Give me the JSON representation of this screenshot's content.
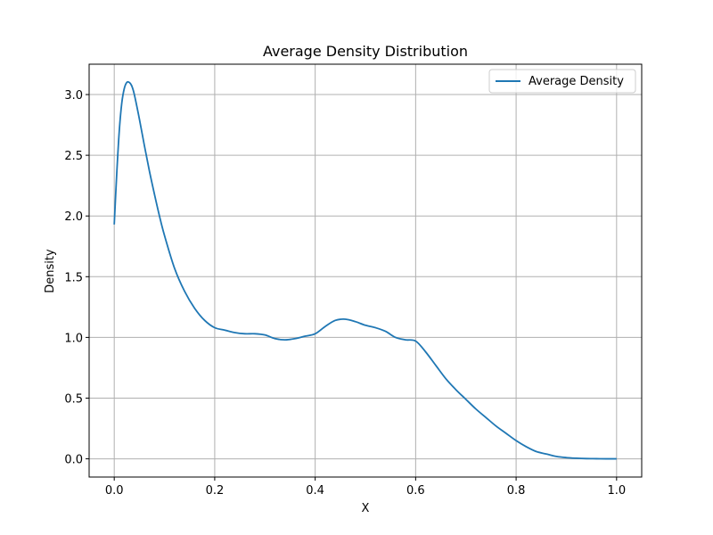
{
  "chart_data": {
    "type": "line",
    "title": "Average Density Distribution",
    "xlabel": "X",
    "ylabel": "Density",
    "xlim": [
      -0.05,
      1.05
    ],
    "ylim": [
      -0.15,
      3.25
    ],
    "xticks": [
      0.0,
      0.2,
      0.4,
      0.6,
      0.8,
      1.0
    ],
    "yticks": [
      0.0,
      0.5,
      1.0,
      1.5,
      2.0,
      2.5,
      3.0
    ],
    "xtick_labels": [
      "0.0",
      "0.2",
      "0.4",
      "0.6",
      "0.8",
      "1.0"
    ],
    "ytick_labels": [
      "0.0",
      "0.5",
      "1.0",
      "1.5",
      "2.0",
      "2.5",
      "3.0"
    ],
    "grid": true,
    "legend_position": "top-right",
    "series": [
      {
        "name": "Average Density",
        "color": "#1f77b4",
        "x": [
          0.0,
          0.005,
          0.01,
          0.015,
          0.02,
          0.025,
          0.03,
          0.035,
          0.04,
          0.05,
          0.06,
          0.07,
          0.08,
          0.09,
          0.1,
          0.12,
          0.14,
          0.16,
          0.18,
          0.2,
          0.22,
          0.24,
          0.26,
          0.28,
          0.3,
          0.32,
          0.34,
          0.36,
          0.38,
          0.4,
          0.42,
          0.44,
          0.46,
          0.48,
          0.5,
          0.52,
          0.54,
          0.56,
          0.58,
          0.6,
          0.62,
          0.64,
          0.66,
          0.68,
          0.7,
          0.72,
          0.74,
          0.76,
          0.78,
          0.8,
          0.82,
          0.84,
          0.86,
          0.88,
          0.9,
          0.92,
          0.94,
          0.96,
          0.98,
          1.0
        ],
        "y": [
          1.93,
          2.35,
          2.7,
          2.93,
          3.05,
          3.1,
          3.1,
          3.07,
          3.0,
          2.8,
          2.58,
          2.37,
          2.18,
          2.0,
          1.84,
          1.57,
          1.38,
          1.24,
          1.14,
          1.08,
          1.06,
          1.04,
          1.03,
          1.03,
          1.02,
          0.99,
          0.98,
          0.99,
          1.01,
          1.03,
          1.09,
          1.14,
          1.15,
          1.13,
          1.1,
          1.08,
          1.05,
          1.0,
          0.98,
          0.97,
          0.88,
          0.77,
          0.66,
          0.57,
          0.49,
          0.41,
          0.34,
          0.27,
          0.21,
          0.15,
          0.1,
          0.06,
          0.04,
          0.02,
          0.01,
          0.005,
          0.002,
          0.001,
          0.0,
          0.0
        ]
      }
    ]
  }
}
